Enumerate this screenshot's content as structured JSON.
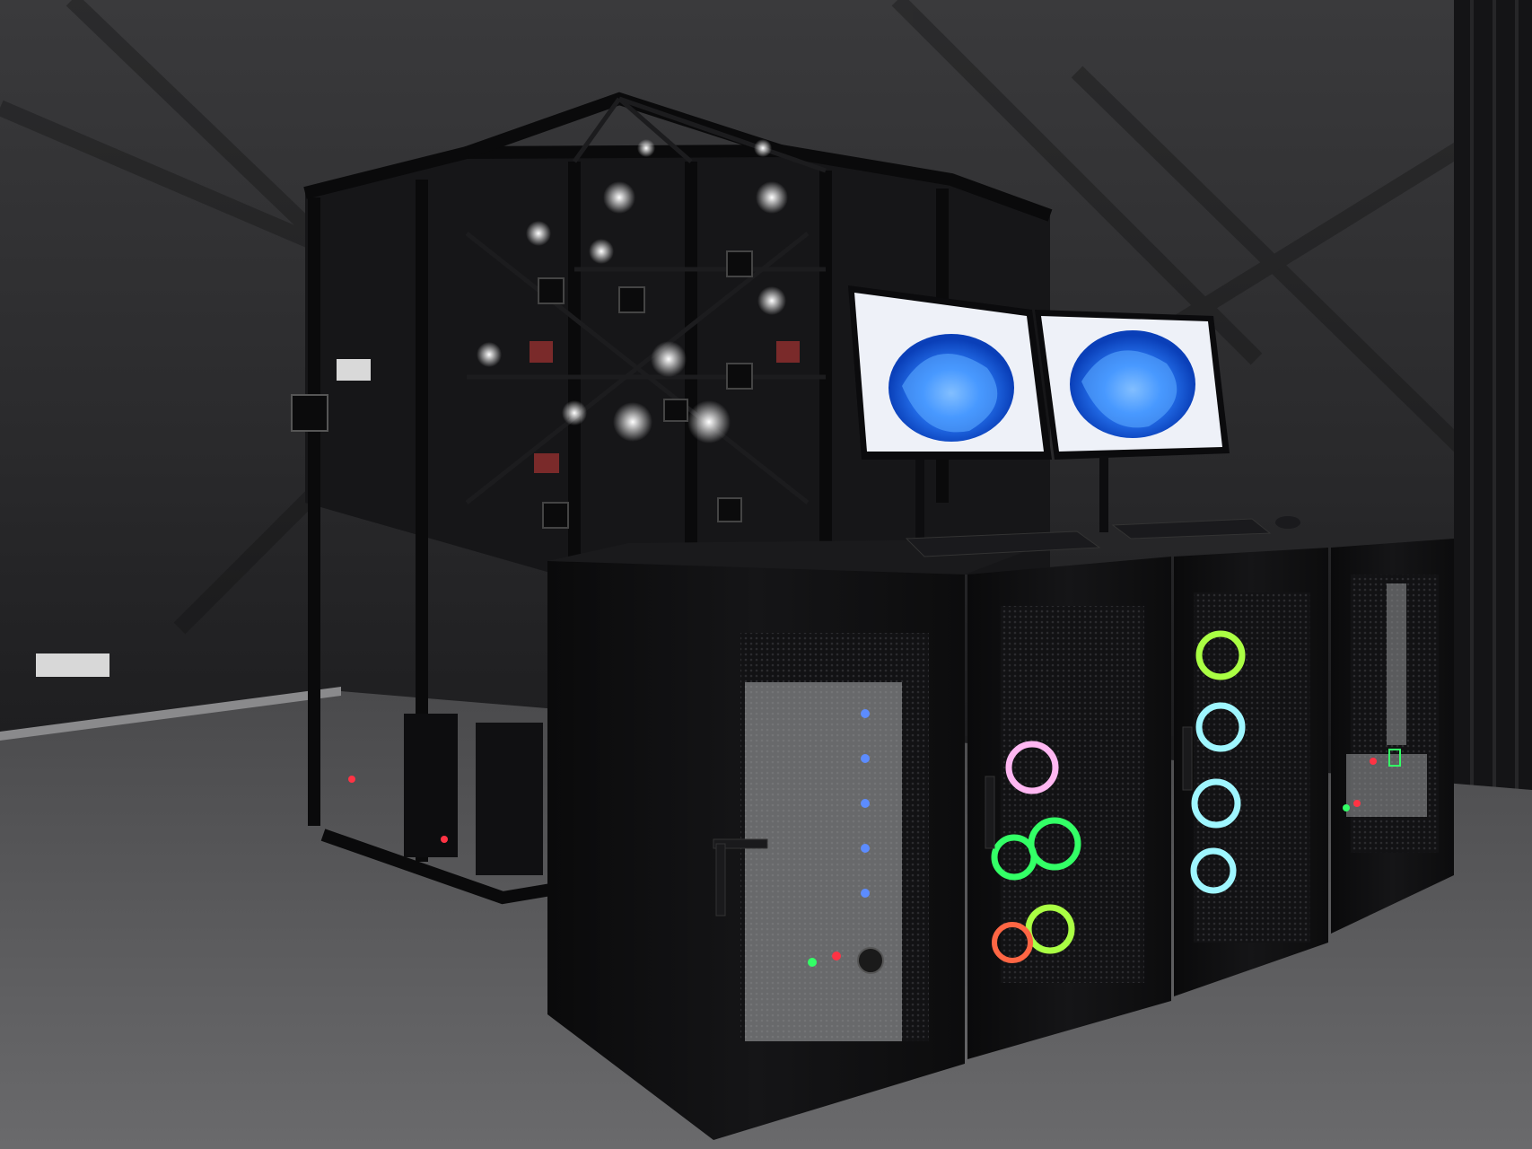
{
  "scene": {
    "description_hidden": true,
    "colors": {
      "backdrop": "#2b2b2d",
      "floor": "#5e5e60",
      "metal": "#0d0d0f",
      "light": "#f4f6ff",
      "screen_blue": "#1e6fe8",
      "led_green": "#33ff66",
      "led_red": "#ff3344",
      "led_blue": "#5c8cff",
      "fan_pink": "#ffb7f2",
      "fan_cyan": "#9ff6ff"
    }
  }
}
